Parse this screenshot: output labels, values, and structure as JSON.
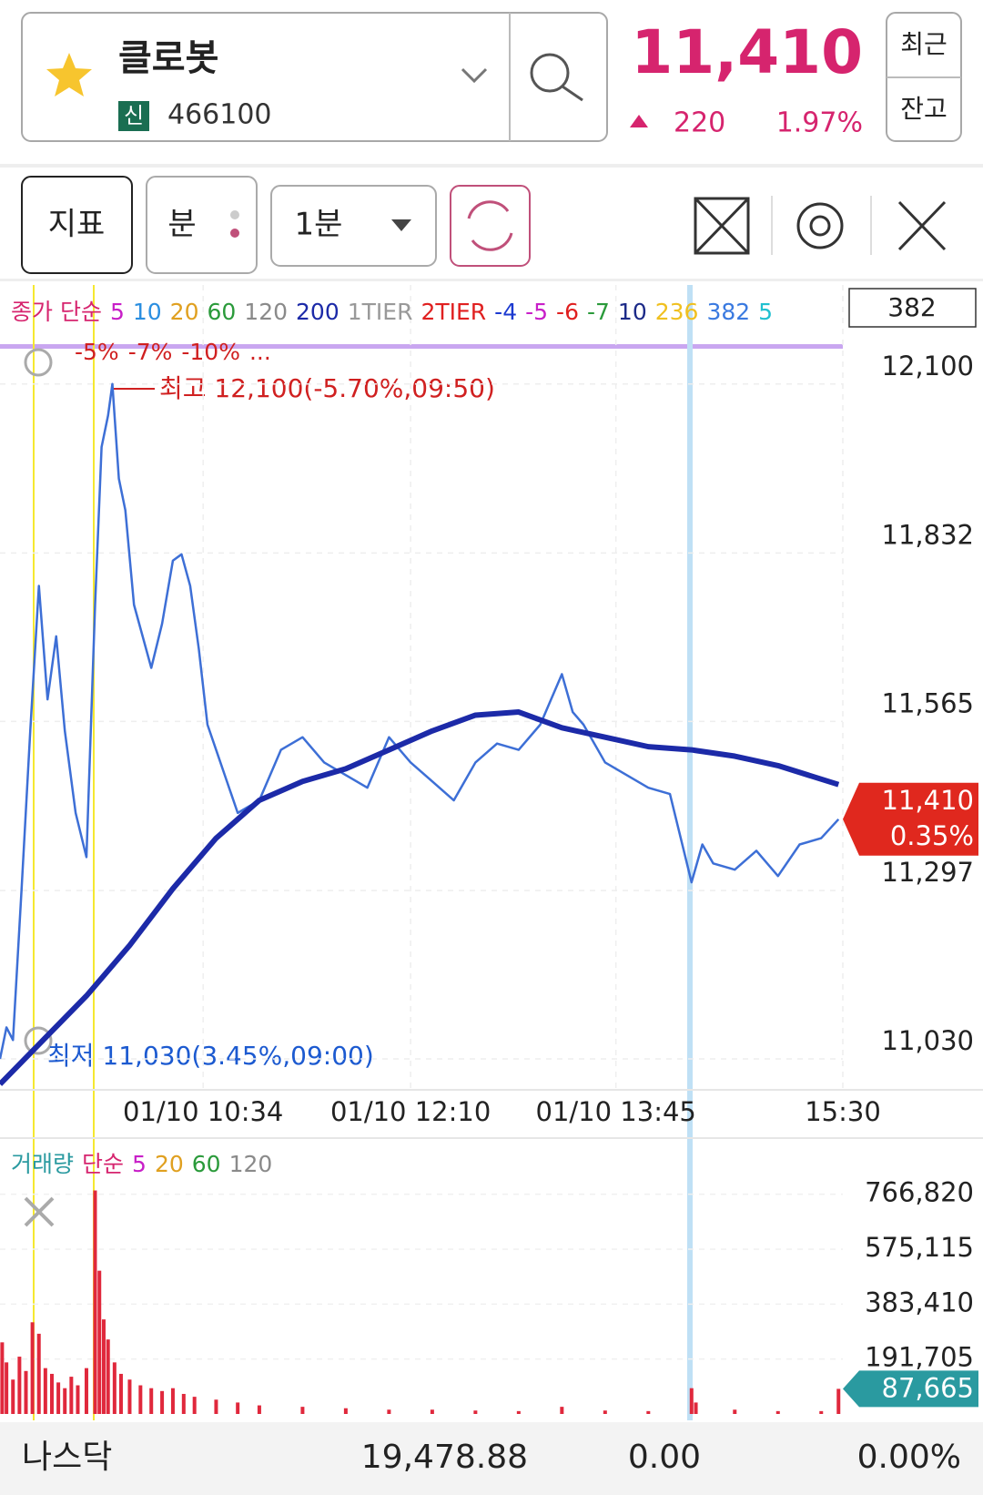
{
  "header": {
    "name": "클로봇",
    "badge": "신",
    "code": "466100",
    "price": "11,410",
    "change": "220",
    "change_pct": "1.97%",
    "buttons": [
      "최근",
      "잔고"
    ]
  },
  "toolbar": {
    "indicator": "지표",
    "unit": "분",
    "interval": "1분"
  },
  "price_chart": {
    "type": "line",
    "legend": [
      {
        "text": "종가 단순",
        "color": "#d6246e"
      },
      {
        "text": "5",
        "color": "#c81fc8"
      },
      {
        "text": "10",
        "color": "#2a8ee0"
      },
      {
        "text": "20",
        "color": "#e0a020"
      },
      {
        "text": "60",
        "color": "#2a9a3a"
      },
      {
        "text": "120",
        "color": "#8a8a8a"
      },
      {
        "text": "200",
        "color": "#1c2aa8"
      },
      {
        "text": "1TIER",
        "color": "#999999"
      },
      {
        "text": "2TIER",
        "color": "#e02020"
      },
      {
        "text": "-4",
        "color": "#1c3ad0"
      },
      {
        "text": "-5",
        "color": "#c81fc8"
      },
      {
        "text": "-6",
        "color": "#e02020"
      },
      {
        "text": "-7",
        "color": "#2a9a3a"
      },
      {
        "text": "10",
        "color": "#1c2a88"
      },
      {
        "text": "236",
        "color": "#f0c020"
      },
      {
        "text": "382",
        "color": "#3a7ae0"
      },
      {
        "text": "5",
        "color": "#20c0d0"
      }
    ],
    "legend2": [
      "-5%",
      "-7%",
      "-10%",
      "..."
    ],
    "legend_box": "382",
    "high_label": "최고 12,100(-5.70%,09:50)",
    "low_label": "최저 11,030(3.45%,09:00)",
    "series": [
      {
        "color": "#3d6fd6",
        "line_width": 2.5,
        "x": [
          0,
          3,
          6,
          10,
          14,
          18,
          22,
          26,
          30,
          35,
          40,
          44,
          47,
          50,
          52,
          55,
          58,
          62,
          66,
          70,
          75,
          80,
          84,
          88,
          92,
          96,
          100,
          105,
          110,
          120,
          130,
          140,
          150,
          160,
          170,
          180,
          190,
          200,
          210,
          220,
          230,
          240,
          250,
          255,
          260,
          265,
          270,
          280,
          290,
          300,
          310,
          315,
          320,
          325,
          330,
          340,
          350,
          360,
          370,
          380,
          388
        ],
        "values": [
          11030,
          11080,
          11060,
          11300,
          11550,
          11780,
          11600,
          11700,
          11550,
          11420,
          11350,
          11750,
          12000,
          12050,
          12100,
          11950,
          11900,
          11750,
          11700,
          11650,
          11720,
          11820,
          11830,
          11780,
          11680,
          11560,
          11520,
          11470,
          11420,
          11440,
          11520,
          11540,
          11500,
          11480,
          11460,
          11540,
          11500,
          11470,
          11440,
          11500,
          11530,
          11520,
          11560,
          11600,
          11640,
          11580,
          11560,
          11500,
          11480,
          11460,
          11450,
          11380,
          11310,
          11370,
          11340,
          11330,
          11360,
          11320,
          11370,
          11380,
          11410
        ]
      },
      {
        "color": "#1c2aa8",
        "line_width": 6,
        "x": [
          0,
          20,
          40,
          60,
          80,
          100,
          120,
          140,
          160,
          180,
          200,
          220,
          240,
          260,
          280,
          300,
          320,
          340,
          360,
          388
        ],
        "values": [
          10990,
          11060,
          11130,
          11210,
          11300,
          11380,
          11440,
          11470,
          11490,
          11520,
          11550,
          11575,
          11580,
          11555,
          11540,
          11525,
          11520,
          11510,
          11495,
          11465
        ]
      }
    ],
    "xlim": [
      0,
      390
    ],
    "xticks": [
      {
        "value": 94,
        "label": "01/10 10:34"
      },
      {
        "value": 190,
        "label": "01/10 12:10"
      },
      {
        "value": 285,
        "label": "01/10 13:45"
      },
      {
        "value": 390,
        "label": "15:30"
      }
    ],
    "ylim": [
      10981,
      12257
    ],
    "yticks": [
      {
        "value": 11030,
        "label": "11,030"
      },
      {
        "value": 11297,
        "label": "11,297"
      },
      {
        "value": 11565,
        "label": "11,565"
      },
      {
        "value": 11832,
        "label": "11,832"
      },
      {
        "value": 12100,
        "label": "12,100"
      }
    ],
    "last_price": {
      "value": 11410,
      "label": "11,410",
      "pct": "0.35%"
    }
  },
  "volume_chart": {
    "type": "bar",
    "legend": [
      {
        "text": "거래량",
        "color": "#2a9aa0"
      },
      {
        "text": "단순",
        "color": "#d6246e"
      },
      {
        "text": "5",
        "color": "#c81fc8"
      },
      {
        "text": "20",
        "color": "#e0a020"
      },
      {
        "text": "60",
        "color": "#2a9a3a"
      },
      {
        "text": "120",
        "color": "#8a8a8a"
      }
    ],
    "color": "#e0283c",
    "x": [
      1,
      3,
      6,
      9,
      12,
      15,
      18,
      21,
      24,
      27,
      30,
      33,
      36,
      40,
      44,
      46,
      48,
      50,
      53,
      56,
      60,
      65,
      70,
      75,
      80,
      85,
      90,
      100,
      110,
      120,
      140,
      160,
      180,
      200,
      220,
      240,
      260,
      280,
      300,
      320,
      322,
      340,
      360,
      380,
      388
    ],
    "values": [
      250000,
      180000,
      120000,
      200000,
      150000,
      320000,
      280000,
      160000,
      140000,
      110000,
      90000,
      130000,
      100000,
      160000,
      780000,
      500000,
      330000,
      260000,
      180000,
      140000,
      120000,
      100000,
      90000,
      80000,
      90000,
      70000,
      60000,
      50000,
      40000,
      30000,
      25000,
      20000,
      15000,
      15000,
      12000,
      10000,
      25000,
      12000,
      10000,
      90000,
      40000,
      15000,
      10000,
      10000,
      87665
    ],
    "xlim": [
      0,
      390
    ],
    "ylim": [
      0,
      962800
    ],
    "yticks": [
      {
        "value": 191705,
        "label": "191,705"
      },
      {
        "value": 383410,
        "label": "383,410"
      },
      {
        "value": 575115,
        "label": "575,115"
      },
      {
        "value": 766820,
        "label": "766,820"
      }
    ],
    "last": {
      "value": 87665,
      "label": "87,665"
    }
  },
  "footer": {
    "name": "나스닥",
    "value": "19,478.88",
    "change": "0.00",
    "pct": "0.00%"
  }
}
